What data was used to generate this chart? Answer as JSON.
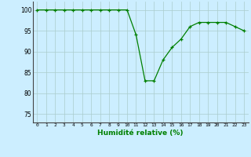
{
  "x": [
    0,
    1,
    2,
    3,
    4,
    5,
    6,
    7,
    8,
    9,
    10,
    11,
    12,
    13,
    14,
    15,
    16,
    17,
    18,
    19,
    20,
    21,
    22,
    23
  ],
  "y": [
    100,
    100,
    100,
    100,
    100,
    100,
    100,
    100,
    100,
    100,
    100,
    94,
    83,
    83,
    88,
    91,
    93,
    96,
    97,
    97,
    97,
    97,
    96,
    95
  ],
  "line_color": "#008000",
  "marker": "+",
  "bg_color": "#cceeff",
  "grid_color": "#aacccc",
  "xlabel": "Humidité relative (%)",
  "ylabel_ticks": [
    75,
    80,
    85,
    90,
    95,
    100
  ],
  "xlim": [
    -0.5,
    23.5
  ],
  "ylim": [
    73,
    102
  ],
  "figsize": [
    3.2,
    2.0
  ],
  "dpi": 100
}
